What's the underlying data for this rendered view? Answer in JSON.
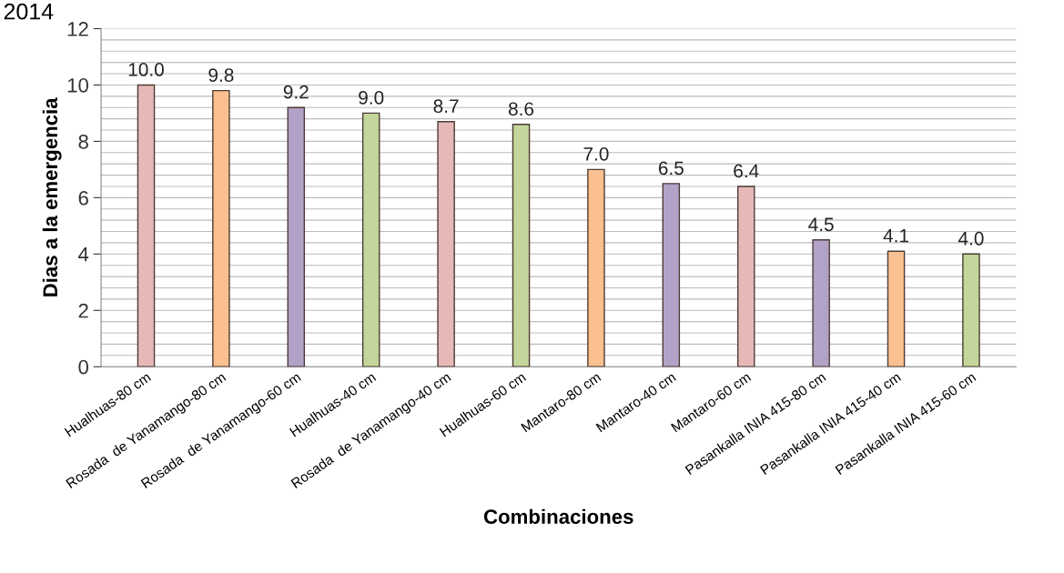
{
  "chart_data": {
    "type": "bar",
    "annotations": [
      "2014"
    ],
    "xlabel": "Combinaciones",
    "ylabel": "Dias a la emergencia",
    "categories": [
      "Hualhuas-80 cm",
      "Rosada  de Yanamango-80 cm",
      "Rosada  de Yanamango-60 cm",
      "Hualhuas-40 cm",
      "Rosada  de Yanamango-40 cm",
      "Hualhuas-60 cm",
      "Mantaro-80 cm",
      "Mantaro-40 cm",
      "Mantaro-60 cm",
      "Pasankalla INIA 415-80 cm",
      "Pasankalla INIA 415-40 cm",
      "Pasankalla INIA 415-60 cm"
    ],
    "values": [
      10.0,
      9.8,
      9.2,
      9.0,
      8.7,
      8.6,
      7.0,
      6.5,
      6.4,
      4.5,
      4.1,
      4.0
    ],
    "value_labels": [
      "10.0",
      "9.8",
      "9.2",
      "9.0",
      "8.7",
      "8.6",
      "7.0",
      "6.5",
      "6.4",
      "4.5",
      "4.1",
      "4.0"
    ],
    "colors": [
      "#e6b9b8",
      "#fac090",
      "#b3a2c7",
      "#c3d69b",
      "#e6b9b8",
      "#c3d69b",
      "#fac090",
      "#b3a2c7",
      "#e6b9b8",
      "#b3a2c7",
      "#fac090",
      "#c3d69b"
    ],
    "ylim": [
      0,
      12
    ],
    "yticks": [
      0,
      2,
      4,
      6,
      8,
      10,
      12
    ],
    "grid": "y"
  }
}
